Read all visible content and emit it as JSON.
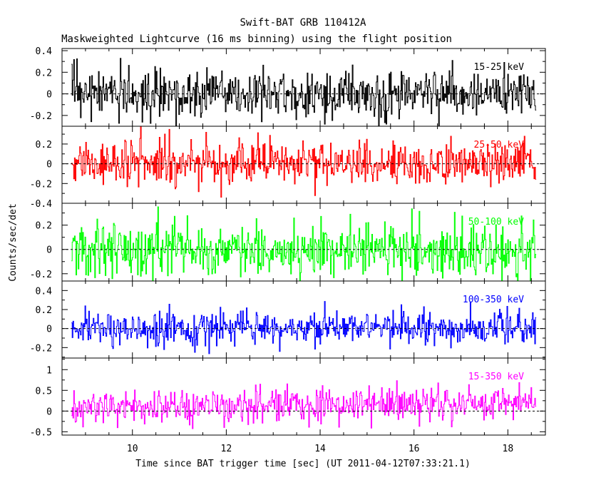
{
  "chart_data": {
    "type": "line",
    "title": "Swift-BAT GRB 110412A",
    "subtitle": "Maskweighted Lightcurve (16 ms binning) using the flight position",
    "xlabel": "Time since BAT trigger time [sec] (UT 2011-04-12T07:33:21.1)",
    "ylabel": "Counts/sec/det",
    "xlim": [
      8.5,
      18.8
    ],
    "x_ticks": [
      "10",
      "12",
      "14",
      "16",
      "18"
    ],
    "x_tick_values": [
      10,
      12,
      14,
      16,
      18
    ],
    "bin_width_sec": 0.016,
    "time_range": [
      8.7,
      18.6
    ],
    "grid": false,
    "panels": [
      {
        "name": "15-25 keV",
        "color": "#000000",
        "ylim": [
          -0.3,
          0.42
        ],
        "y_ticks": [
          "0.4",
          "0.2",
          "0",
          "-0.2"
        ],
        "y_tick_values": [
          0.4,
          0.2,
          0,
          -0.2
        ],
        "mean": 0.0,
        "noise_sigma": 0.11
      },
      {
        "name": "25-50 keV",
        "color": "#ff0000",
        "ylim": [
          -0.4,
          0.38
        ],
        "y_ticks": [
          "0.2",
          "0",
          "-0.2",
          "-0.4"
        ],
        "y_tick_values": [
          0.2,
          0,
          -0.2,
          -0.4
        ],
        "mean": 0.0,
        "noise_sigma": 0.11
      },
      {
        "name": "50-100 keV",
        "color": "#00ff00",
        "ylim": [
          -0.26,
          0.38
        ],
        "y_ticks": [
          "0.2",
          "0",
          "-0.2"
        ],
        "y_tick_values": [
          0.2,
          0,
          -0.2
        ],
        "mean": 0.0,
        "noise_sigma": 0.11
      },
      {
        "name": "100-350 keV",
        "color": "#0000ff",
        "ylim": [
          -0.31,
          0.5
        ],
        "y_ticks": [
          "0.4",
          "0.2",
          "0",
          "-0.2"
        ],
        "y_tick_values": [
          0.4,
          0.2,
          0,
          -0.2
        ],
        "mean": 0.0,
        "noise_sigma": 0.09
      },
      {
        "name": "15-350 keV",
        "color": "#ff00ff",
        "ylim": [
          -0.58,
          1.28
        ],
        "y_ticks": [
          "1",
          "0.5",
          "0",
          "-0.5"
        ],
        "y_tick_values": [
          1,
          0.5,
          0,
          -0.5
        ],
        "mean": 0.1,
        "noise_sigma": 0.2
      }
    ]
  }
}
